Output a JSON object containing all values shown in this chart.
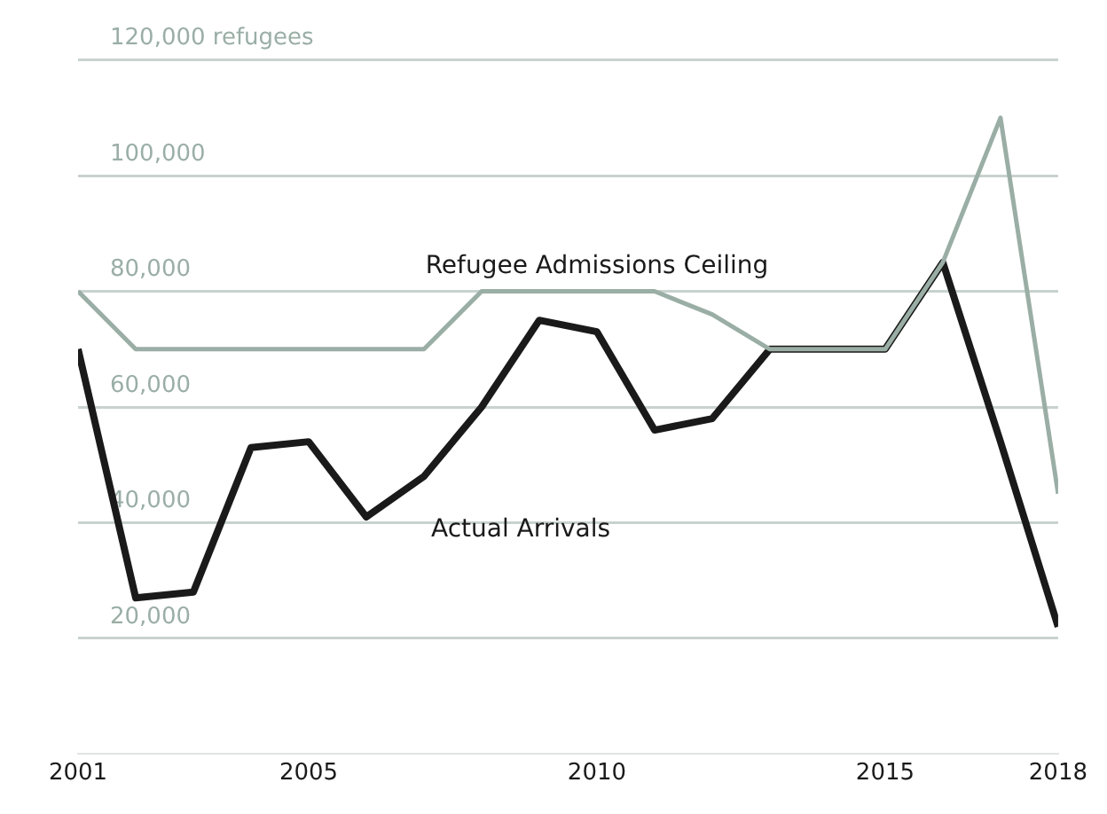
{
  "chart_data": {
    "type": "line",
    "x": [
      2001,
      2002,
      2003,
      2004,
      2005,
      2006,
      2007,
      2008,
      2009,
      2010,
      2011,
      2012,
      2013,
      2014,
      2015,
      2016,
      2017,
      2018
    ],
    "series": [
      {
        "name": "Refugee Admissions Ceiling",
        "color": "#9aaea6",
        "values": [
          80000,
          70000,
          70000,
          70000,
          70000,
          70000,
          70000,
          80000,
          80000,
          80000,
          80000,
          76000,
          70000,
          70000,
          70000,
          85000,
          110000,
          45000
        ]
      },
      {
        "name": "Actual Arrivals",
        "color": "#1a1a1a",
        "values": [
          70000,
          27000,
          28000,
          53000,
          54000,
          41000,
          48000,
          60000,
          75000,
          73000,
          56000,
          58000,
          70000,
          70000,
          70000,
          85000,
          54000,
          22000
        ]
      }
    ],
    "xlim": [
      2001,
      2018
    ],
    "xticks": [
      2001,
      2005,
      2010,
      2015,
      2018
    ],
    "ylim": [
      0,
      120000
    ],
    "yticks": [
      {
        "value": 20000,
        "label": "20,000"
      },
      {
        "value": 40000,
        "label": "40,000"
      },
      {
        "value": 60000,
        "label": "60,000"
      },
      {
        "value": 80000,
        "label": "80,000"
      },
      {
        "value": 100000,
        "label": "100,000"
      },
      {
        "value": 120000,
        "label": "120,000 refugees"
      }
    ],
    "grid": "y",
    "legend": false,
    "marker": "none",
    "line_style": "solid"
  }
}
